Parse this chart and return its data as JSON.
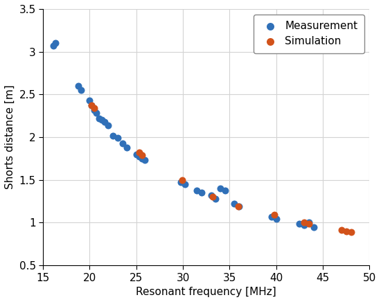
{
  "measurement_x": [
    16.1,
    16.3,
    18.8,
    19.1,
    20.0,
    20.2,
    20.5,
    20.7,
    21.0,
    21.3,
    21.6,
    22.0,
    22.5,
    23.0,
    23.5,
    24.0,
    25.0,
    25.3,
    25.6,
    25.9,
    29.8,
    30.2,
    31.5,
    32.0,
    33.0,
    33.5,
    34.0,
    34.5,
    35.5,
    36.0,
    39.5,
    40.0,
    42.5,
    43.0,
    43.5,
    44.0
  ],
  "measurement_y": [
    3.07,
    3.1,
    2.6,
    2.55,
    2.43,
    2.37,
    2.32,
    2.28,
    2.22,
    2.2,
    2.18,
    2.14,
    2.02,
    1.99,
    1.93,
    1.88,
    1.8,
    1.77,
    1.75,
    1.73,
    1.47,
    1.45,
    1.38,
    1.35,
    1.32,
    1.28,
    1.4,
    1.38,
    1.22,
    1.19,
    1.07,
    1.04,
    0.99,
    0.97,
    1.0,
    0.95
  ],
  "simulation_x": [
    20.2,
    20.5,
    25.3,
    25.6,
    29.9,
    33.2,
    35.9,
    39.8,
    43.0,
    43.5,
    47.0,
    47.5,
    48.0
  ],
  "simulation_y": [
    2.37,
    2.34,
    1.82,
    1.79,
    1.5,
    1.3,
    1.19,
    1.09,
    1.0,
    0.99,
    0.91,
    0.9,
    0.89
  ],
  "measurement_color": "#3070B8",
  "simulation_color": "#D2521A",
  "marker_size": 52,
  "xlabel": "Resonant frequency [MHz]",
  "ylabel": "Shorts distance [m]",
  "xlim": [
    15,
    50
  ],
  "ylim": [
    0.5,
    3.5
  ],
  "xticks": [
    15,
    20,
    25,
    30,
    35,
    40,
    45,
    50
  ],
  "yticks": [
    0.5,
    1.0,
    1.5,
    2.0,
    2.5,
    3.0,
    3.5
  ],
  "ytick_labels": [
    "0.5",
    "1",
    "1.5",
    "2",
    "2.5",
    "3",
    "3.5"
  ],
  "legend_measurement": "Measurement",
  "legend_simulation": "Simulation",
  "grid": true,
  "background_color": "#ffffff",
  "figure_width": 5.5,
  "figure_height": 4.36,
  "dpi": 100
}
